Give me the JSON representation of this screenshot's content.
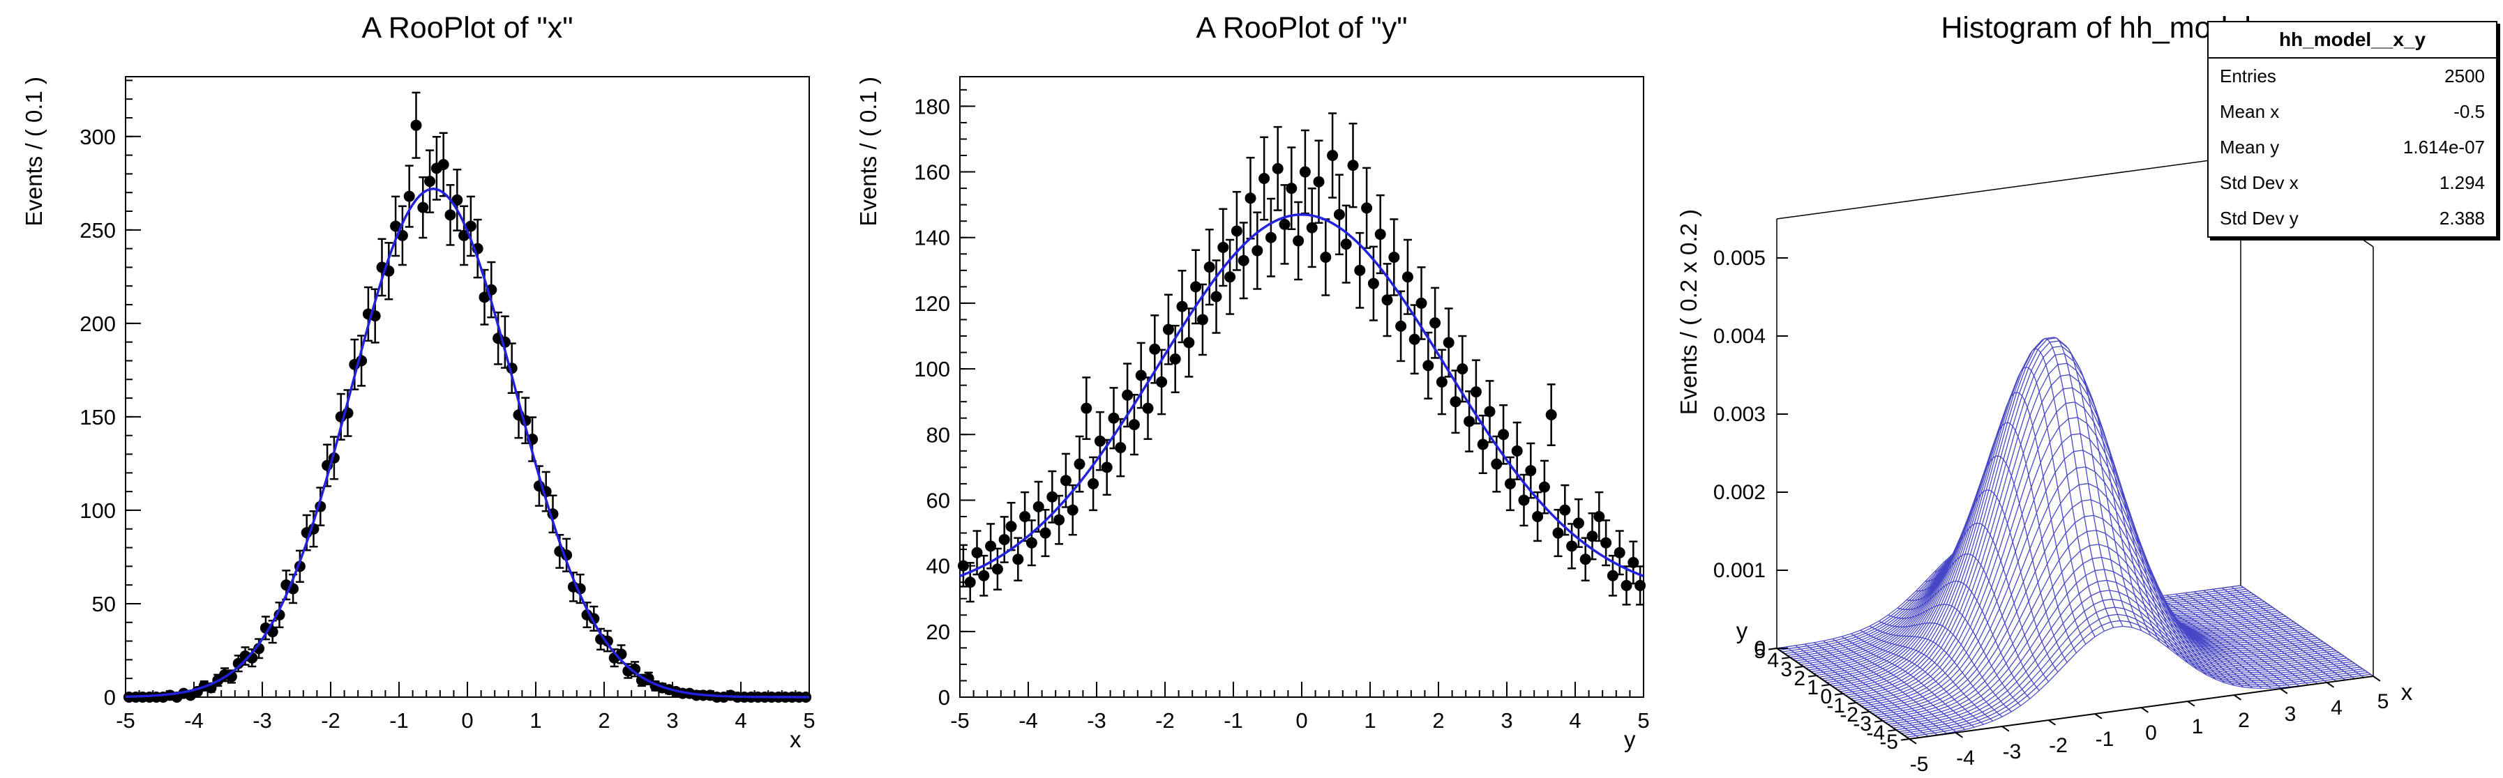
{
  "canvas": {
    "background": "#ffffff"
  },
  "chart_data": [
    {
      "type": "scatter",
      "title": "A RooPlot of \"x\"",
      "xlabel": "x",
      "ylabel": "Events / ( 0.1 )",
      "xlim": [
        -5,
        5
      ],
      "ylim": [
        0,
        332
      ],
      "x_major_ticks": [
        -5,
        -4,
        -3,
        -2,
        -1,
        0,
        1,
        2,
        3,
        4,
        5
      ],
      "x_minor_step": 0.2,
      "y_major_ticks": [
        0,
        50,
        100,
        150,
        200,
        250,
        300
      ],
      "y_minor_step": 10,
      "grid": false,
      "bin_width": 0.1,
      "marker_color": "#000000",
      "curve_color": "#2222dd",
      "errors": "poisson-sqrt",
      "curve": {
        "shape": "gaussian",
        "amplitude": 272,
        "mean": -0.5,
        "sigma": 1.2,
        "offset": 0
      },
      "points": {
        "x_start": -4.95,
        "x_step": 0.1,
        "y": [
          0,
          0,
          0,
          0,
          0,
          0,
          1,
          0,
          2,
          1,
          3,
          6,
          5,
          9,
          12,
          11,
          18,
          22,
          21,
          26,
          37,
          35,
          44,
          60,
          58,
          70,
          88,
          90,
          102,
          124,
          128,
          150,
          152,
          178,
          180,
          205,
          204,
          230,
          228,
          252,
          247,
          268,
          306,
          262,
          276,
          283,
          285,
          258,
          266,
          247,
          252,
          240,
          214,
          218,
          192,
          190,
          176,
          151,
          148,
          138,
          113,
          110,
          98,
          78,
          76,
          59,
          58,
          44,
          42,
          31,
          30,
          21,
          23,
          14,
          15,
          9,
          10,
          6,
          5,
          4,
          3,
          2,
          2,
          1,
          1,
          1,
          0,
          0,
          1,
          0,
          0,
          0,
          0,
          0,
          0,
          0,
          0,
          0,
          0,
          0
        ]
      }
    },
    {
      "type": "scatter",
      "title": "A RooPlot of \"y\"",
      "xlabel": "y",
      "ylabel": "Events / ( 0.1 )",
      "xlim": [
        -5,
        5
      ],
      "ylim": [
        0,
        189
      ],
      "x_major_ticks": [
        -5,
        -4,
        -3,
        -2,
        -1,
        0,
        1,
        2,
        3,
        4,
        5
      ],
      "x_minor_step": 0.2,
      "y_major_ticks": [
        0,
        20,
        40,
        60,
        80,
        100,
        120,
        140,
        160,
        180
      ],
      "y_minor_step": 5,
      "grid": false,
      "bin_width": 0.1,
      "marker_color": "#000000",
      "curve_color": "#2222dd",
      "errors": "poisson-sqrt",
      "curve": {
        "shape": "gaussian",
        "amplitude": 117,
        "mean": 0,
        "sigma": 2.1,
        "offset": 30
      },
      "points": {
        "x_start": -4.95,
        "x_step": 0.1,
        "y": [
          40,
          35,
          44,
          37,
          46,
          39,
          48,
          52,
          42,
          55,
          47,
          58,
          50,
          61,
          54,
          66,
          57,
          71,
          88,
          65,
          78,
          70,
          85,
          76,
          92,
          83,
          98,
          88,
          106,
          96,
          112,
          103,
          119,
          108,
          125,
          115,
          131,
          122,
          137,
          128,
          142,
          133,
          152,
          136,
          158,
          140,
          161,
          144,
          155,
          139,
          160,
          143,
          157,
          134,
          165,
          147,
          138,
          162,
          130,
          149,
          126,
          141,
          121,
          134,
          113,
          128,
          109,
          120,
          101,
          114,
          96,
          108,
          90,
          100,
          84,
          93,
          77,
          87,
          71,
          80,
          65,
          75,
          60,
          69,
          55,
          64,
          86,
          50,
          57,
          46,
          53,
          42,
          49,
          55,
          47,
          37,
          44,
          34,
          41,
          34
        ]
      }
    },
    {
      "type": "surface3d",
      "title": "Histogram of hh_model__x_y",
      "xlabel": "x",
      "ylabel": "y",
      "zlabel": "Events / ( 0.2 x 0.2 )",
      "xlim": [
        -5,
        5
      ],
      "ylim": [
        -5,
        5
      ],
      "zlim": [
        0,
        0.005
      ],
      "x_ticks": [
        -5,
        -4,
        -3,
        -2,
        -1,
        0,
        1,
        2,
        3,
        4,
        5
      ],
      "y_ticks": [
        -5,
        -4,
        -3,
        -2,
        -1,
        0,
        1,
        2,
        3,
        4,
        5
      ],
      "z_ticks": [
        0,
        0.001,
        0.002,
        0.003,
        0.004,
        0.005
      ],
      "grid": {
        "nx": 50,
        "ny": 50
      },
      "bin_size": "0.2 x 0.2",
      "mesh_color": "#4646c6",
      "surface": {
        "formula": "A*exp(-(x-mx)^2/(2*sx^2)) * ((1-c)*exp(-(y-my)^2/(2*sy^2)) + c)",
        "A": 0.0042,
        "mx": -0.5,
        "sx": 1.2,
        "my": 0,
        "sy": 2.1,
        "c": 0.21
      },
      "stats": {
        "title": "hh_model__x_y",
        "rows": [
          {
            "label": "Entries",
            "value": "2500"
          },
          {
            "label": "Mean x",
            "value": "-0.5"
          },
          {
            "label": "Mean y",
            "value": "1.614e-07"
          },
          {
            "label": "Std Dev x",
            "value": "1.294"
          },
          {
            "label": "Std Dev y",
            "value": "2.388"
          }
        ]
      }
    }
  ]
}
